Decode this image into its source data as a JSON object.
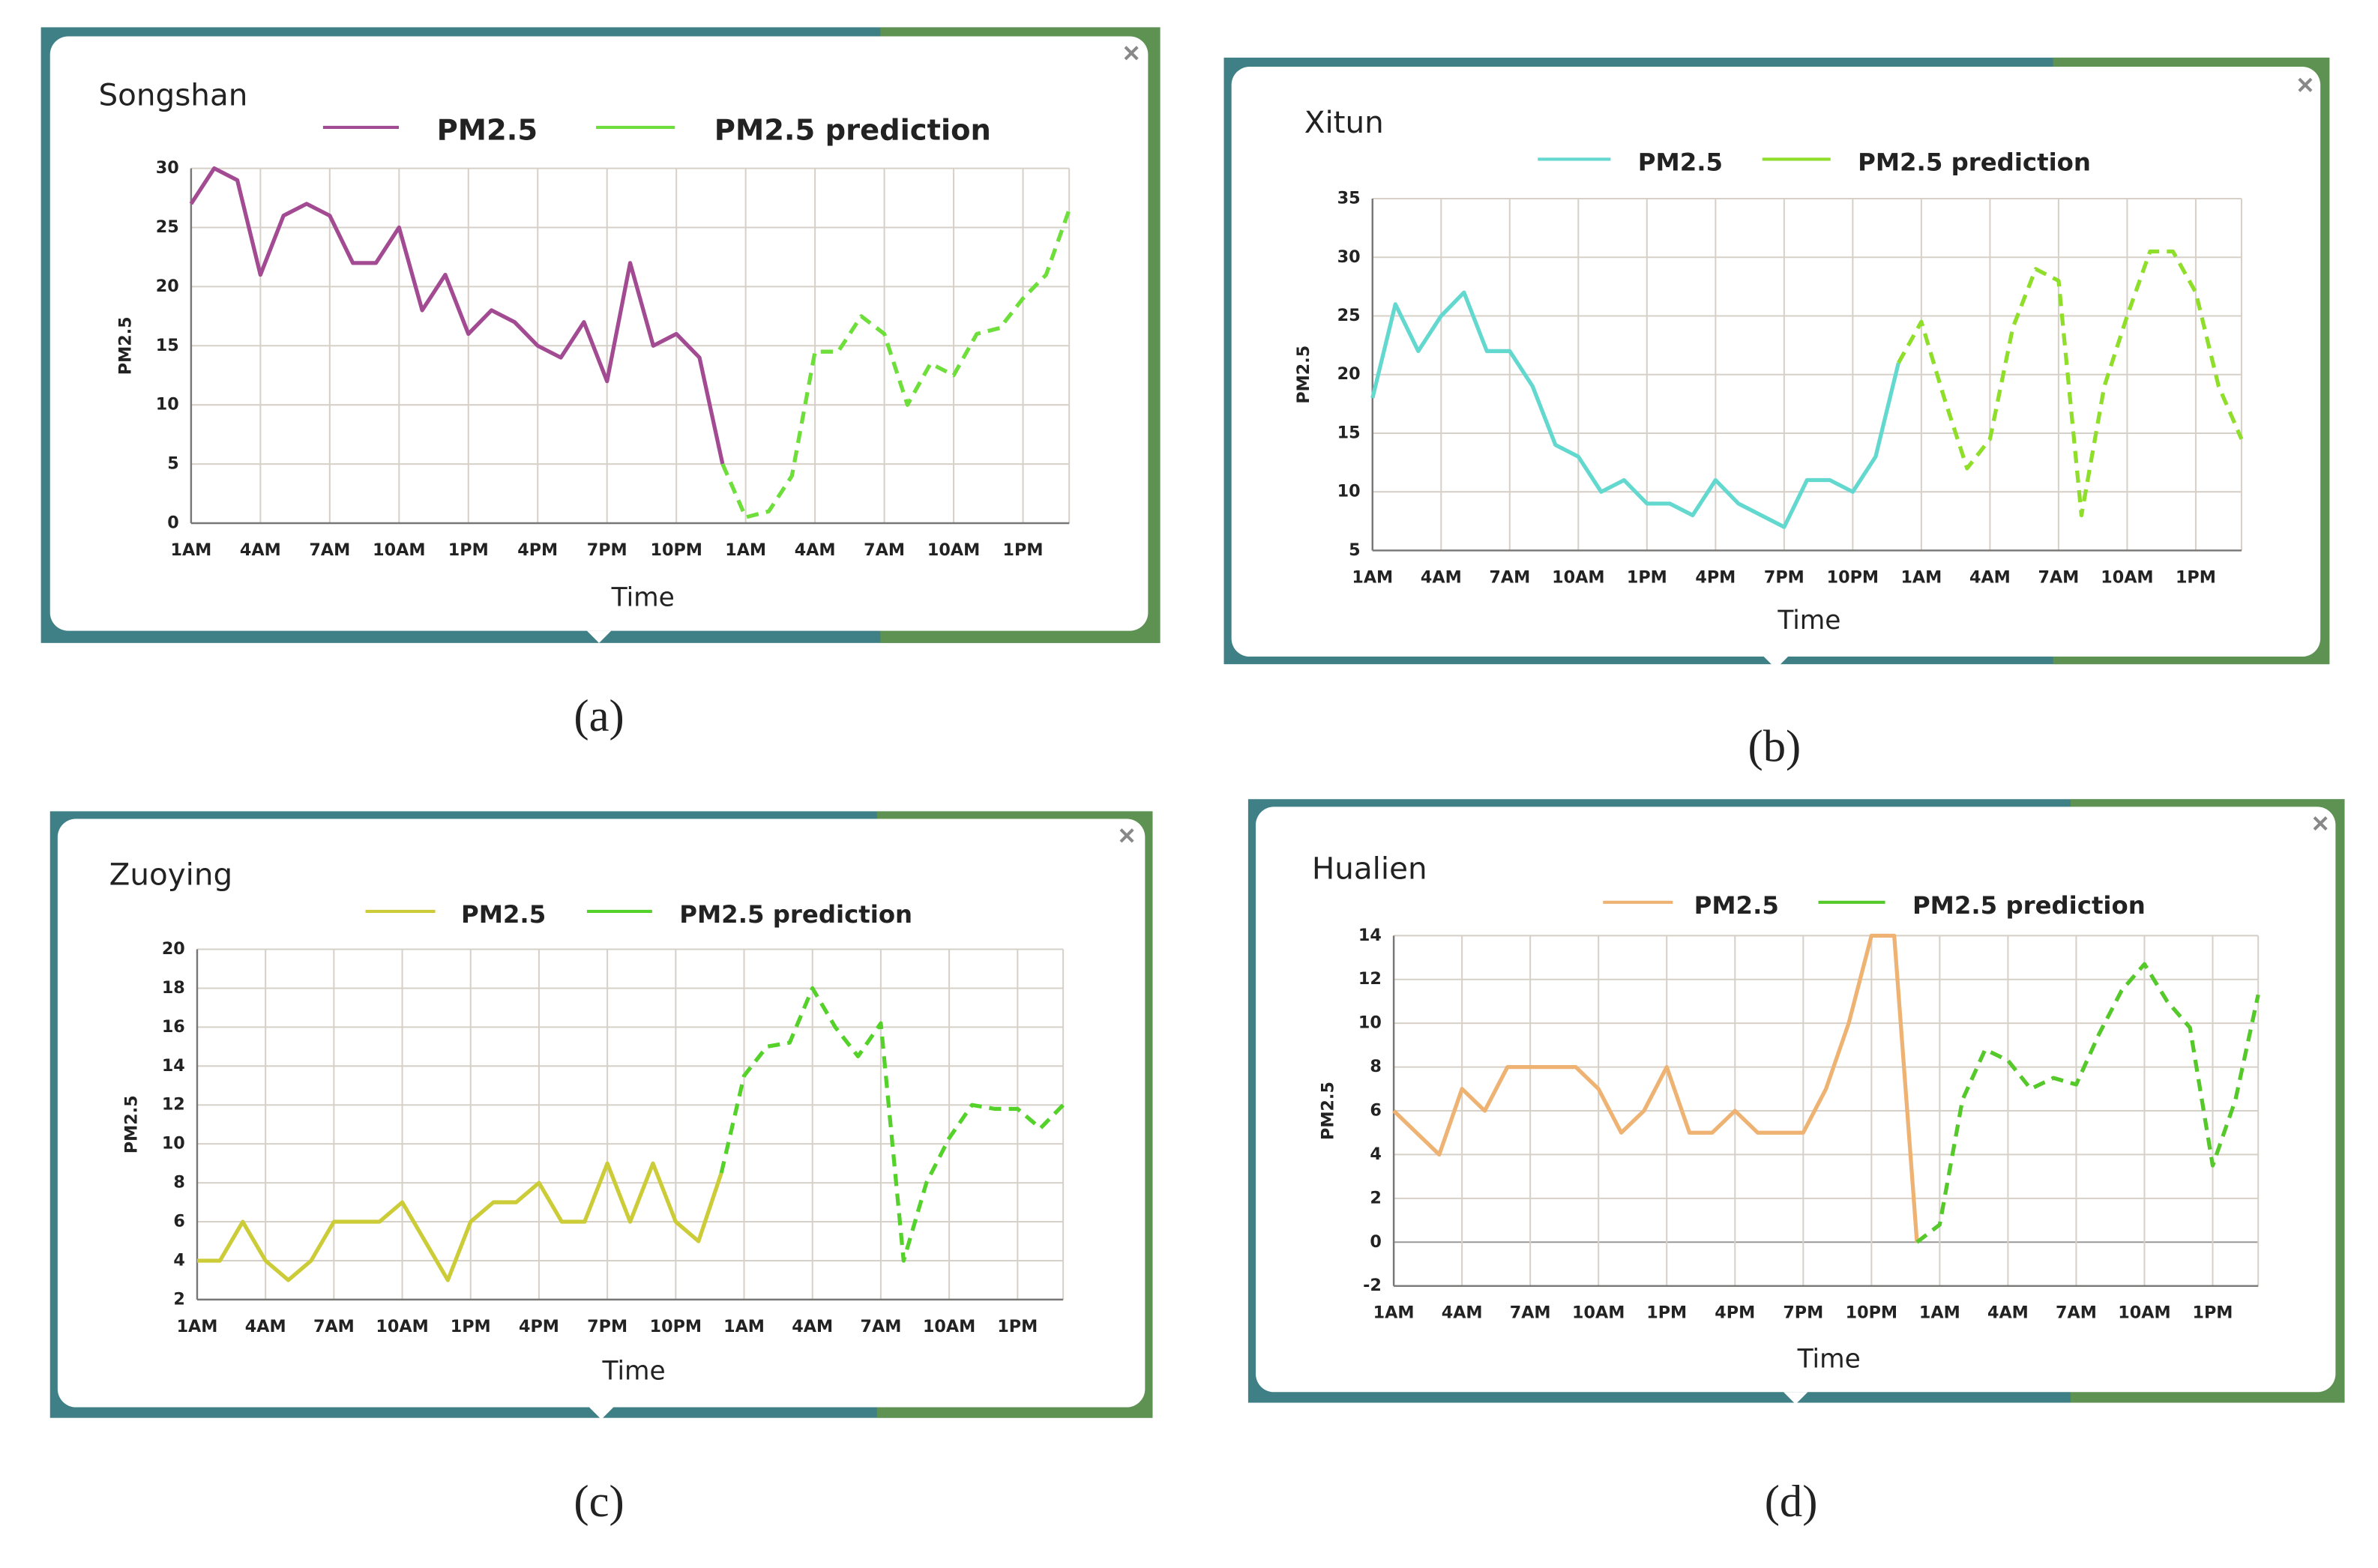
{
  "chart_data": [
    {
      "type": "line",
      "caption": "(a)",
      "title": "Songshan",
      "x_label": "Time",
      "y_label": "PM2.5",
      "categories": [
        "1AM",
        null,
        null,
        "4AM",
        null,
        null,
        "7AM",
        null,
        null,
        "10AM",
        null,
        null,
        "1PM",
        null,
        null,
        "4PM",
        null,
        null,
        "7PM",
        null,
        null,
        "10PM",
        null,
        null,
        "1AM",
        null,
        null,
        "4AM",
        null,
        null,
        "7AM",
        null,
        null,
        "10AM",
        null,
        null,
        "1PM",
        null,
        null
      ],
      "ylim": [
        0,
        30
      ],
      "yticks": [
        0,
        5,
        10,
        15,
        20,
        25,
        30
      ],
      "grid": true,
      "series": [
        {
          "name": "PM2.5",
          "color": "#a24a92",
          "dashed": false,
          "values": [
            27,
            30,
            29,
            21,
            26,
            27,
            26,
            22,
            22,
            25,
            18,
            21,
            16,
            18,
            17,
            15,
            14,
            17,
            12,
            22,
            15,
            16,
            14,
            5,
            null,
            null,
            null,
            null,
            null,
            null,
            null,
            null,
            null,
            null,
            null,
            null,
            null,
            null,
            null
          ]
        },
        {
          "name": "PM2.5 prediction",
          "color": "#6ede3a",
          "dashed": true,
          "values": [
            null,
            null,
            null,
            null,
            null,
            null,
            null,
            null,
            null,
            null,
            null,
            null,
            null,
            null,
            null,
            null,
            null,
            null,
            null,
            null,
            null,
            null,
            null,
            5,
            0.5,
            1,
            4,
            14.5,
            14.5,
            17.5,
            16,
            10,
            13.5,
            12.5,
            16,
            16.5,
            19,
            21,
            26.5
          ]
        }
      ]
    },
    {
      "type": "line",
      "caption": "(b)",
      "title": "Xitun",
      "x_label": "Time",
      "y_label": "PM2.5",
      "categories": [
        "1AM",
        null,
        null,
        "4AM",
        null,
        null,
        "7AM",
        null,
        null,
        "10AM",
        null,
        null,
        "1PM",
        null,
        null,
        "4PM",
        null,
        null,
        "7PM",
        null,
        null,
        "10PM",
        null,
        null,
        "1AM",
        null,
        null,
        "4AM",
        null,
        null,
        "7AM",
        null,
        null,
        "10AM",
        null,
        null,
        "1PM",
        null,
        null
      ],
      "ylim": [
        5,
        35
      ],
      "yticks": [
        5,
        10,
        15,
        20,
        25,
        30,
        35
      ],
      "grid": true,
      "series": [
        {
          "name": "PM2.5",
          "color": "#62d8cf",
          "dashed": false,
          "values": [
            18,
            26,
            22,
            25,
            27,
            22,
            22,
            19,
            14,
            13,
            10,
            11,
            9,
            9,
            8,
            11,
            9,
            8,
            7,
            11,
            11,
            10,
            13,
            21,
            null,
            null,
            null,
            null,
            null,
            null,
            null,
            null,
            null,
            null,
            null,
            null,
            null,
            null,
            null
          ]
        },
        {
          "name": "PM2.5 prediction",
          "color": "#8ede2a",
          "dashed": true,
          "values": [
            null,
            null,
            null,
            null,
            null,
            null,
            null,
            null,
            null,
            null,
            null,
            null,
            null,
            null,
            null,
            null,
            null,
            null,
            null,
            null,
            null,
            null,
            null,
            21,
            24.5,
            18,
            12,
            14.5,
            24,
            29,
            28,
            8,
            19,
            25,
            30.5,
            30.5,
            27,
            19,
            14.5
          ]
        }
      ]
    },
    {
      "type": "line",
      "caption": "(c)",
      "title": "Zuoying",
      "x_label": "Time",
      "y_label": "PM2.5",
      "categories": [
        "1AM",
        null,
        null,
        "4AM",
        null,
        null,
        "7AM",
        null,
        null,
        "10AM",
        null,
        null,
        "1PM",
        null,
        null,
        "4PM",
        null,
        null,
        "7PM",
        null,
        null,
        "10PM",
        null,
        null,
        "1AM",
        null,
        null,
        "4AM",
        null,
        null,
        "7AM",
        null,
        null,
        "10AM",
        null,
        null,
        "1PM",
        null,
        null
      ],
      "ylim": [
        2,
        20
      ],
      "yticks": [
        2,
        4,
        6,
        8,
        10,
        12,
        14,
        16,
        18,
        20
      ],
      "grid": true,
      "series": [
        {
          "name": "PM2.5",
          "color": "#cccc38",
          "dashed": false,
          "values": [
            4,
            4,
            6,
            4,
            3,
            4,
            6,
            6,
            6,
            7,
            5,
            3,
            6,
            7,
            7,
            8,
            6,
            6,
            9,
            6,
            9,
            6,
            5,
            8.5,
            null,
            null,
            null,
            null,
            null,
            null,
            null,
            null,
            null,
            null,
            null,
            null,
            null,
            null,
            null
          ]
        },
        {
          "name": "PM2.5 prediction",
          "color": "#55d22a",
          "dashed": true,
          "values": [
            null,
            null,
            null,
            null,
            null,
            null,
            null,
            null,
            null,
            null,
            null,
            null,
            null,
            null,
            null,
            null,
            null,
            null,
            null,
            null,
            null,
            null,
            null,
            8.5,
            13.5,
            15,
            15.2,
            18,
            16,
            14.5,
            16.2,
            4,
            8,
            10.3,
            12,
            11.8,
            11.8,
            10.8,
            12
          ]
        }
      ]
    },
    {
      "type": "line",
      "caption": "(d)",
      "title": "Hualien",
      "x_label": "Time",
      "y_label": "PM2.5",
      "categories": [
        "1AM",
        null,
        null,
        "4AM",
        null,
        null,
        "7AM",
        null,
        null,
        "10AM",
        null,
        null,
        "1PM",
        null,
        null,
        "4PM",
        null,
        null,
        "7PM",
        null,
        null,
        "10PM",
        null,
        null,
        "1AM",
        null,
        null,
        "4AM",
        null,
        null,
        "7AM",
        null,
        null,
        "10AM",
        null,
        null,
        "1PM",
        null,
        null
      ],
      "ylim": [
        -2,
        14
      ],
      "yticks": [
        -2,
        0,
        2,
        4,
        6,
        8,
        10,
        12,
        14
      ],
      "grid": true,
      "series": [
        {
          "name": "PM2.5",
          "color": "#eeb273",
          "dashed": false,
          "values": [
            6,
            5,
            4,
            7,
            6,
            8,
            8,
            8,
            8,
            7,
            5,
            6,
            8,
            5,
            5,
            6,
            5,
            5,
            5,
            7,
            10,
            14,
            14,
            0,
            null,
            null,
            null,
            null,
            null,
            null,
            null,
            null,
            null,
            null,
            null,
            null,
            null,
            null,
            null
          ]
        },
        {
          "name": "PM2.5 prediction",
          "color": "#55c82a",
          "dashed": true,
          "values": [
            null,
            null,
            null,
            null,
            null,
            null,
            null,
            null,
            null,
            null,
            null,
            null,
            null,
            null,
            null,
            null,
            null,
            null,
            null,
            null,
            null,
            null,
            null,
            0,
            0.8,
            6.5,
            8.8,
            8.3,
            7,
            7.5,
            7.2,
            9.5,
            11.5,
            12.7,
            11,
            9.8,
            3.5,
            6.5,
            11.3
          ]
        }
      ]
    }
  ]
}
